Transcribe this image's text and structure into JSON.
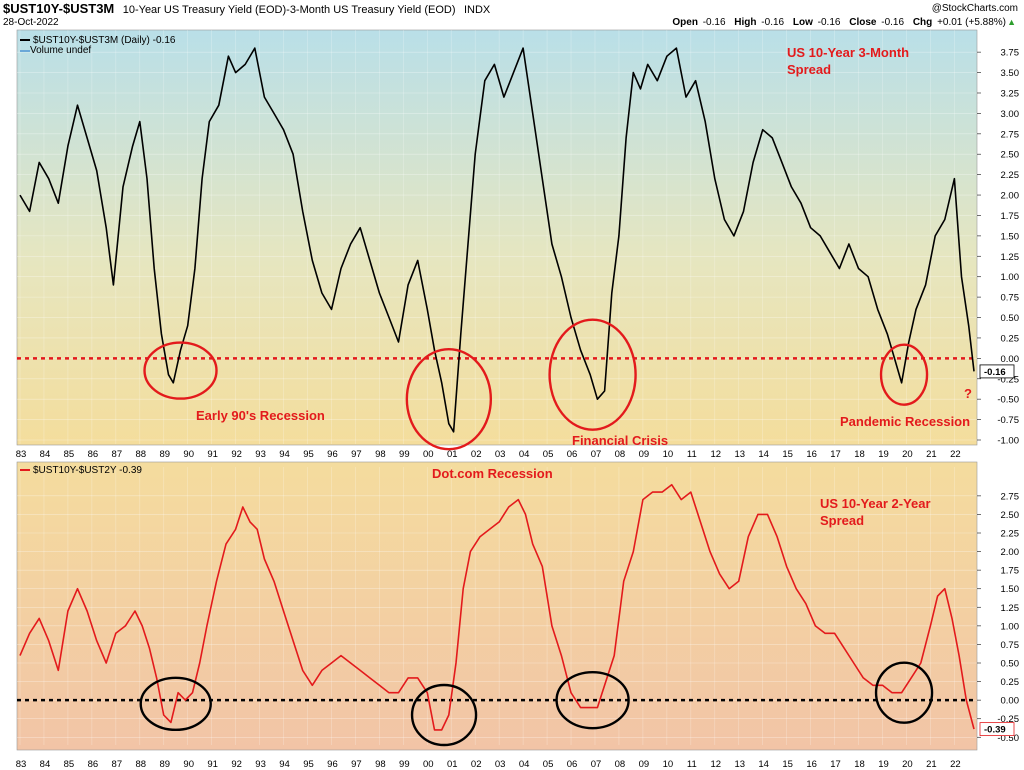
{
  "header": {
    "title_symbol": "$UST10Y-$UST3M",
    "title_desc": "10-Year US Treasury Yield (EOD)-3-Month US Treasury Yield (EOD)",
    "title_exchange": "INDX",
    "date": "28-Oct-2022",
    "copyright": "@StockCharts.com",
    "ohlc": [
      {
        "label": "Open",
        "value": "-0.16"
      },
      {
        "label": "High",
        "value": "-0.16"
      },
      {
        "label": "Low",
        "value": "-0.16"
      },
      {
        "label": "Close",
        "value": "-0.16"
      },
      {
        "label": "Chg",
        "value": "+0.01 (+5.88%)"
      }
    ],
    "chg_arrow": "▲",
    "up_color": "#2e9e2e"
  },
  "chart_data": [
    {
      "type": "line",
      "legend": [
        "$UST10Y-$UST3M (Daily) -0.16",
        "Volume undef"
      ],
      "series": [
        {
          "name": "$UST10Y-$UST3M (Daily)",
          "color": "#000000",
          "x": [
            1983.0,
            1983.4,
            1983.8,
            1984.2,
            1984.6,
            1985.0,
            1985.4,
            1985.8,
            1986.2,
            1986.6,
            1986.9,
            1987.3,
            1987.7,
            1988.0,
            1988.3,
            1988.6,
            1988.9,
            1989.2,
            1989.4,
            1989.7,
            1990.0,
            1990.3,
            1990.6,
            1990.9,
            1991.3,
            1991.7,
            1992.0,
            1992.4,
            1992.8,
            1993.2,
            1993.6,
            1994.0,
            1994.4,
            1994.8,
            1995.2,
            1995.6,
            1996.0,
            1996.4,
            1996.8,
            1997.2,
            1997.6,
            1998.0,
            1998.4,
            1998.8,
            1999.2,
            1999.6,
            2000.0,
            2000.3,
            2000.6,
            2000.9,
            2001.1,
            2001.4,
            2001.7,
            2002.0,
            2002.4,
            2002.8,
            2003.2,
            2003.6,
            2004.0,
            2004.4,
            2004.8,
            2005.2,
            2005.6,
            2006.0,
            2006.4,
            2006.8,
            2007.1,
            2007.4,
            2007.7,
            2008.0,
            2008.3,
            2008.6,
            2008.9,
            2009.2,
            2009.6,
            2010.0,
            2010.4,
            2010.8,
            2011.2,
            2011.6,
            2012.0,
            2012.4,
            2012.8,
            2013.2,
            2013.6,
            2014.0,
            2014.4,
            2014.8,
            2015.2,
            2015.6,
            2016.0,
            2016.4,
            2016.8,
            2017.2,
            2017.6,
            2018.0,
            2018.4,
            2018.8,
            2019.2,
            2019.5,
            2019.8,
            2020.1,
            2020.4,
            2020.8,
            2021.2,
            2021.6,
            2022.0,
            2022.3,
            2022.6,
            2022.82
          ],
          "values": [
            2.0,
            1.8,
            2.4,
            2.2,
            1.9,
            2.6,
            3.1,
            2.7,
            2.3,
            1.6,
            0.9,
            2.1,
            2.6,
            2.9,
            2.2,
            1.1,
            0.3,
            -0.2,
            -0.3,
            0.1,
            0.4,
            1.1,
            2.2,
            2.9,
            3.1,
            3.7,
            3.5,
            3.6,
            3.8,
            3.2,
            3.0,
            2.8,
            2.5,
            1.8,
            1.2,
            0.8,
            0.6,
            1.1,
            1.4,
            1.6,
            1.2,
            0.8,
            0.5,
            0.2,
            0.9,
            1.2,
            0.6,
            0.1,
            -0.3,
            -0.8,
            -0.9,
            0.3,
            1.4,
            2.5,
            3.4,
            3.6,
            3.2,
            3.5,
            3.8,
            3.0,
            2.2,
            1.4,
            1.0,
            0.5,
            0.1,
            -0.2,
            -0.5,
            -0.4,
            0.8,
            1.5,
            2.7,
            3.5,
            3.3,
            3.6,
            3.4,
            3.7,
            3.8,
            3.2,
            3.4,
            2.9,
            2.2,
            1.7,
            1.5,
            1.8,
            2.4,
            2.8,
            2.7,
            2.4,
            2.1,
            1.9,
            1.6,
            1.5,
            1.3,
            1.1,
            1.4,
            1.1,
            1.0,
            0.6,
            0.3,
            0.0,
            -0.3,
            0.2,
            0.6,
            0.9,
            1.5,
            1.7,
            2.2,
            1.0,
            0.4,
            -0.16
          ]
        }
      ],
      "reference_line": {
        "value": 0.0,
        "color": "#e31a1c",
        "style": "dashed"
      },
      "ylim": [
        -1.0,
        3.85
      ],
      "yticks": [
        "3.75",
        "3.50",
        "3.25",
        "3.00",
        "2.75",
        "2.50",
        "2.25",
        "2.00",
        "1.75",
        "1.50",
        "1.25",
        "1.00",
        "0.75",
        "0.50",
        "0.25",
        "0.00",
        "-0.25",
        "-0.50",
        "-0.75",
        "-1.00"
      ],
      "last_value_label": "-0.16",
      "annotations": [
        {
          "text": "US 10-Year 3-Month",
          "color": "#e31a1c"
        },
        {
          "text": "Spread",
          "color": "#e31a1c"
        },
        {
          "text": "Early 90's Recession",
          "color": "#e31a1c"
        },
        {
          "text": "Financial Crisis",
          "color": "#e31a1c"
        },
        {
          "text": "Pandemic Recession",
          "color": "#e31a1c"
        },
        {
          "text": "?",
          "color": "#e31a1c"
        }
      ],
      "circles": [
        {
          "year": 1989.7,
          "value": -0.15,
          "color": "#e31a1c"
        },
        {
          "year": 2000.9,
          "value": -0.5,
          "color": "#e31a1c"
        },
        {
          "year": 2006.9,
          "value": -0.2,
          "color": "#e31a1c"
        },
        {
          "year": 2019.9,
          "value": -0.2,
          "color": "#e31a1c"
        }
      ]
    },
    {
      "type": "line",
      "legend": [
        "$UST10Y-$UST2Y -0.39"
      ],
      "series": [
        {
          "name": "$UST10Y-$UST2Y",
          "color": "#e31a1c",
          "x": [
            1983.0,
            1983.4,
            1983.8,
            1984.2,
            1984.6,
            1985.0,
            1985.4,
            1985.8,
            1986.2,
            1986.6,
            1987.0,
            1987.4,
            1987.8,
            1988.1,
            1988.4,
            1988.7,
            1989.0,
            1989.3,
            1989.6,
            1989.9,
            1990.2,
            1990.5,
            1990.8,
            1991.2,
            1991.6,
            1992.0,
            1992.3,
            1992.6,
            1992.9,
            1993.2,
            1993.6,
            1994.0,
            1994.4,
            1994.8,
            1995.2,
            1995.6,
            1996.0,
            1996.4,
            1996.8,
            1997.2,
            1997.6,
            1998.0,
            1998.4,
            1998.8,
            1999.2,
            1999.6,
            2000.0,
            2000.3,
            2000.6,
            2000.9,
            2001.2,
            2001.5,
            2001.8,
            2002.2,
            2002.6,
            2003.0,
            2003.4,
            2003.8,
            2004.1,
            2004.4,
            2004.8,
            2005.2,
            2005.6,
            2006.0,
            2006.4,
            2006.8,
            2007.1,
            2007.4,
            2007.8,
            2008.2,
            2008.6,
            2009.0,
            2009.4,
            2009.8,
            2010.2,
            2010.6,
            2011.0,
            2011.4,
            2011.8,
            2012.2,
            2012.6,
            2013.0,
            2013.4,
            2013.8,
            2014.2,
            2014.6,
            2015.0,
            2015.4,
            2015.8,
            2016.2,
            2016.6,
            2017.0,
            2017.4,
            2017.8,
            2018.2,
            2018.6,
            2019.0,
            2019.4,
            2019.8,
            2020.2,
            2020.6,
            2021.0,
            2021.3,
            2021.6,
            2021.9,
            2022.2,
            2022.5,
            2022.82
          ],
          "values": [
            0.6,
            0.9,
            1.1,
            0.8,
            0.4,
            1.2,
            1.5,
            1.2,
            0.8,
            0.5,
            0.9,
            1.0,
            1.2,
            1.0,
            0.7,
            0.3,
            -0.2,
            -0.3,
            0.1,
            0.0,
            0.1,
            0.5,
            1.0,
            1.6,
            2.1,
            2.3,
            2.6,
            2.4,
            2.3,
            1.9,
            1.6,
            1.2,
            0.8,
            0.4,
            0.2,
            0.4,
            0.5,
            0.6,
            0.5,
            0.4,
            0.3,
            0.2,
            0.1,
            0.1,
            0.3,
            0.3,
            0.1,
            -0.4,
            -0.4,
            -0.2,
            0.5,
            1.5,
            2.0,
            2.2,
            2.3,
            2.4,
            2.6,
            2.7,
            2.5,
            2.1,
            1.8,
            1.0,
            0.6,
            0.1,
            -0.1,
            -0.1,
            -0.1,
            0.2,
            0.6,
            1.6,
            2.0,
            2.7,
            2.8,
            2.8,
            2.9,
            2.7,
            2.8,
            2.4,
            2.0,
            1.7,
            1.5,
            1.6,
            2.2,
            2.5,
            2.5,
            2.2,
            1.8,
            1.5,
            1.3,
            1.0,
            0.9,
            0.9,
            0.7,
            0.5,
            0.3,
            0.2,
            0.2,
            0.1,
            0.1,
            0.3,
            0.5,
            1.0,
            1.4,
            1.5,
            1.1,
            0.6,
            0.0,
            -0.39
          ]
        }
      ],
      "reference_line": {
        "value": 0.0,
        "color": "#000000",
        "style": "dashed"
      },
      "ylim": [
        -0.55,
        2.95
      ],
      "yticks": [
        "2.75",
        "2.50",
        "2.25",
        "2.00",
        "1.75",
        "1.50",
        "1.25",
        "1.00",
        "0.75",
        "0.50",
        "0.25",
        "0.00",
        "-0.25",
        "-0.50"
      ],
      "last_value_label": "-0.39",
      "annotations": [
        {
          "text": "Dot.com Recession",
          "color": "#e31a1c"
        },
        {
          "text": "US 10-Year 2-Year",
          "color": "#e31a1c"
        },
        {
          "text": "Spread",
          "color": "#e31a1c"
        }
      ],
      "circles": [
        {
          "year": 1989.5,
          "value": -0.05,
          "color": "#000000"
        },
        {
          "year": 2000.7,
          "value": -0.2,
          "color": "#000000"
        },
        {
          "year": 2006.9,
          "value": 0.0,
          "color": "#000000"
        },
        {
          "year": 2019.9,
          "value": 0.1,
          "color": "#000000"
        }
      ]
    }
  ],
  "x_axis": {
    "year_start": 1983,
    "year_end": 2022.82,
    "labels": [
      "83",
      "84",
      "85",
      "86",
      "87",
      "88",
      "89",
      "90",
      "91",
      "92",
      "93",
      "94",
      "95",
      "96",
      "97",
      "98",
      "99",
      "00",
      "01",
      "02",
      "03",
      "04",
      "05",
      "06",
      "07",
      "08",
      "09",
      "10",
      "11",
      "12",
      "13",
      "14",
      "15",
      "16",
      "17",
      "18",
      "19",
      "20",
      "21",
      "22"
    ]
  }
}
